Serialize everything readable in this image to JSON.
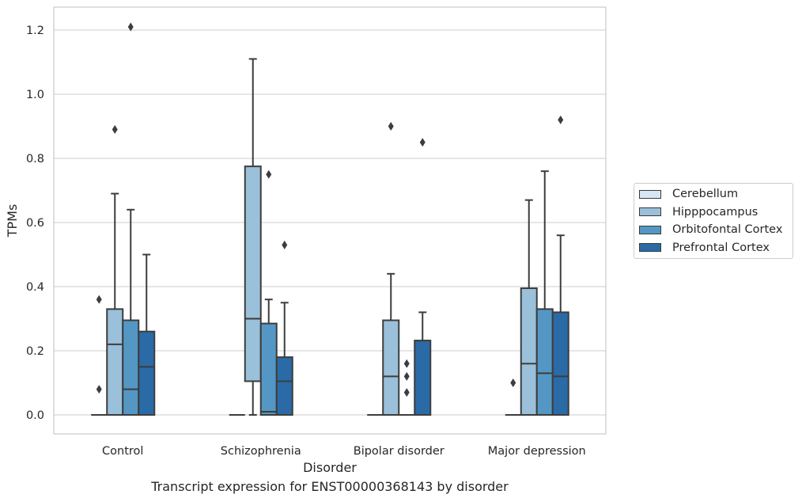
{
  "chart_data": {
    "type": "box",
    "xlabel": "Disorder",
    "ylabel": "TPMs",
    "caption": "Transcript expression for ENST00000368143 by disorder",
    "ylim": [
      -0.06,
      1.27
    ],
    "yticks": [
      "0.0",
      "0.2",
      "0.4",
      "0.6",
      "0.8",
      "1.0",
      "1.2"
    ],
    "grid": "horizontal",
    "legend_position": "right",
    "categories": [
      "Control",
      "Schizophrenia",
      "Bipolar disorder",
      "Major depression"
    ],
    "series": [
      {
        "name": "Cerebellum",
        "color": "#d6e6f4",
        "boxes": [
          {
            "q1": 0,
            "median": 0,
            "q3": 0,
            "whisker_low": 0,
            "whisker_high": 0,
            "outliers": [
              0.08,
              0.36
            ]
          },
          {
            "q1": 0,
            "median": 0,
            "q3": 0,
            "whisker_low": 0,
            "whisker_high": 0,
            "outliers": []
          },
          {
            "q1": 0,
            "median": 0,
            "q3": 0,
            "whisker_low": 0,
            "whisker_high": 0,
            "outliers": []
          },
          {
            "q1": 0,
            "median": 0,
            "q3": 0,
            "whisker_low": 0,
            "whisker_high": 0,
            "outliers": [
              0.1
            ]
          }
        ]
      },
      {
        "name": "Hipppocampus",
        "color": "#9ac0da",
        "boxes": [
          {
            "q1": 0,
            "median": 0.22,
            "q3": 0.33,
            "whisker_low": 0,
            "whisker_high": 0.69,
            "outliers": [
              0.89
            ]
          },
          {
            "q1": 0.105,
            "median": 0.3,
            "q3": 0.775,
            "whisker_low": 0,
            "whisker_high": 1.11,
            "outliers": []
          },
          {
            "q1": 0,
            "median": 0.12,
            "q3": 0.295,
            "whisker_low": 0,
            "whisker_high": 0.44,
            "outliers": [
              0.9
            ]
          },
          {
            "q1": 0,
            "median": 0.16,
            "q3": 0.395,
            "whisker_low": 0,
            "whisker_high": 0.67,
            "outliers": []
          }
        ]
      },
      {
        "name": "Orbitofontal Cortex",
        "color": "#5497c4",
        "boxes": [
          {
            "q1": 0,
            "median": 0.08,
            "q3": 0.295,
            "whisker_low": 0,
            "whisker_high": 0.64,
            "outliers": [
              1.21
            ]
          },
          {
            "q1": 0,
            "median": 0.01,
            "q3": 0.285,
            "whisker_low": 0,
            "whisker_high": 0.36,
            "outliers": [
              0.75
            ]
          },
          {
            "q1": 0,
            "median": 0,
            "q3": 0,
            "whisker_low": 0,
            "whisker_high": 0,
            "outliers": [
              0.07,
              0.12,
              0.16
            ]
          },
          {
            "q1": 0,
            "median": 0.13,
            "q3": 0.33,
            "whisker_low": 0,
            "whisker_high": 0.76,
            "outliers": []
          }
        ]
      },
      {
        "name": "Prefrontal Cortex",
        "color": "#2a6aa6",
        "boxes": [
          {
            "q1": 0,
            "median": 0.15,
            "q3": 0.26,
            "whisker_low": 0,
            "whisker_high": 0.5,
            "outliers": []
          },
          {
            "q1": 0,
            "median": 0.105,
            "q3": 0.18,
            "whisker_low": 0,
            "whisker_high": 0.35,
            "outliers": [
              0.53
            ]
          },
          {
            "q1": 0,
            "median": 0,
            "q3": 0.232,
            "whisker_low": 0,
            "whisker_high": 0.32,
            "outliers": [
              0.85
            ]
          },
          {
            "q1": 0,
            "median": 0.12,
            "q3": 0.32,
            "whisker_low": 0,
            "whisker_high": 0.56,
            "outliers": [
              0.92
            ]
          }
        ]
      }
    ]
  }
}
